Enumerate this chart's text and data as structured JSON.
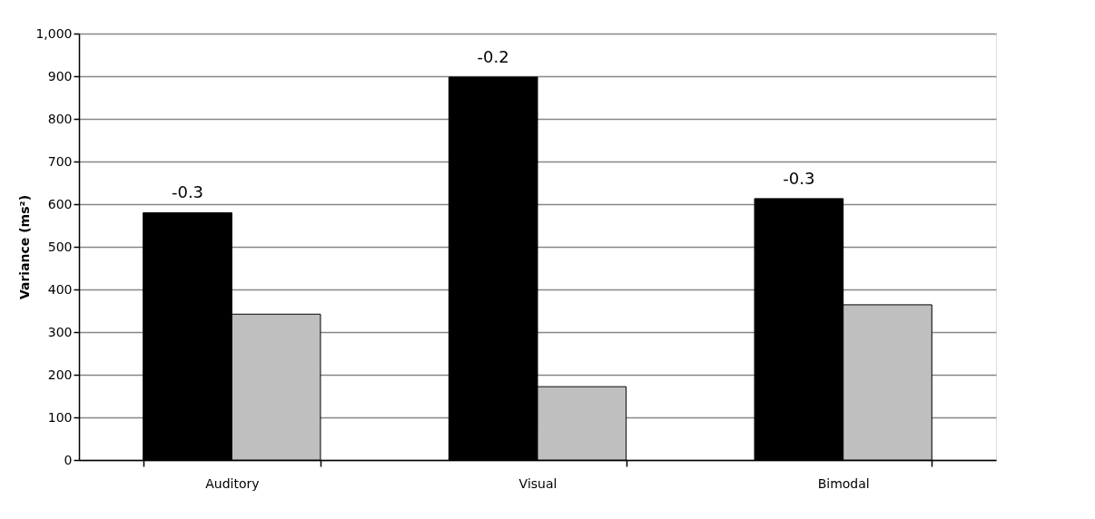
{
  "chart_data": {
    "type": "bar",
    "ylabel": "Variance (ms²)",
    "categories": [
      "Auditory",
      "Visual",
      "Bimodal"
    ],
    "series": [
      {
        "color": "#000000",
        "values": [
          580,
          898,
          613
        ]
      },
      {
        "color": "#bfbfbf",
        "values": [
          342,
          172,
          364
        ]
      }
    ],
    "ylim": [
      0,
      1000
    ],
    "yticks": [
      0,
      100,
      200,
      300,
      400,
      500,
      600,
      700,
      800,
      900,
      {
        "value": 1000,
        "label": "1,000"
      }
    ],
    "grid": "y",
    "annotations": [
      {
        "text": "-0.3",
        "x": "Auditory",
        "y": 580
      },
      {
        "text": "-0.2",
        "x": "Visual",
        "y": 898
      },
      {
        "text": "-0.3",
        "x": "Bimodal",
        "y": 613
      }
    ]
  }
}
